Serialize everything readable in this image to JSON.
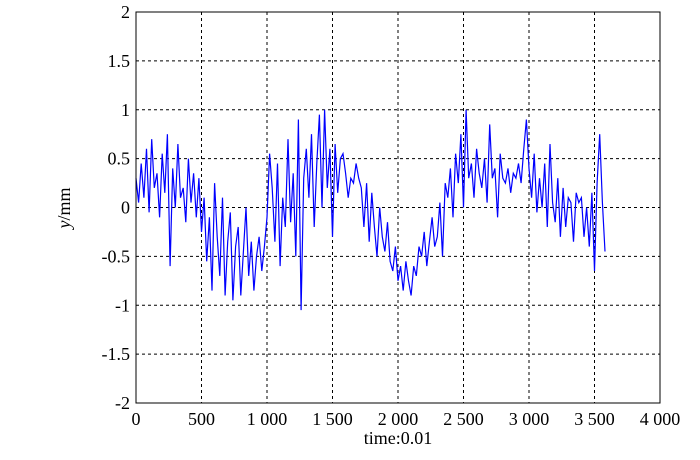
{
  "chart_data": {
    "type": "line",
    "title": "",
    "xlabel": "time:0.01",
    "ylabel_italic": "y",
    "ylabel_unit": "/mm",
    "xlim": [
      0,
      4000
    ],
    "ylim": [
      -2,
      2
    ],
    "xticks": [
      0,
      500,
      1000,
      1500,
      2000,
      2500,
      3000,
      3500,
      4000
    ],
    "xtick_labels": [
      "0",
      "500",
      "1 000",
      "1 500",
      "2 000",
      "2 500",
      "3 000",
      "3 500",
      "4 000"
    ],
    "yticks": [
      -2,
      -1.5,
      -1,
      -0.5,
      0,
      0.5,
      1,
      1.5,
      2
    ],
    "ytick_labels": [
      "-2",
      "-1.5",
      "-1",
      "-0.5",
      "0",
      "0.5",
      "1",
      "1.5",
      "2"
    ],
    "grid": true,
    "line_color": "#0000ff",
    "x_start": 0,
    "x_step": 20,
    "values": [
      0.3,
      0.05,
      0.45,
      0.1,
      0.6,
      -0.05,
      0.7,
      0.2,
      0.35,
      -0.1,
      0.55,
      0.15,
      0.75,
      -0.6,
      0.4,
      0.0,
      0.65,
      0.1,
      0.2,
      -0.15,
      0.5,
      0.05,
      0.35,
      -0.1,
      0.3,
      -0.25,
      0.1,
      -0.55,
      -0.1,
      -0.85,
      0.25,
      -0.3,
      -0.7,
      0.1,
      -0.9,
      -0.35,
      -0.05,
      -0.95,
      -0.4,
      -0.2,
      -0.9,
      -0.45,
      0.0,
      -0.7,
      -0.35,
      -0.85,
      -0.5,
      -0.3,
      -0.65,
      -0.4,
      -0.1,
      0.55,
      0.2,
      -0.35,
      0.45,
      -0.6,
      0.1,
      -0.2,
      0.7,
      -0.15,
      0.35,
      -0.5,
      0.9,
      -1.05,
      0.3,
      0.6,
      0.1,
      0.75,
      -0.2,
      0.45,
      0.95,
      0.0,
      1.0,
      0.2,
      0.6,
      -0.3,
      0.65,
      0.15,
      0.5,
      0.55,
      0.35,
      0.1,
      0.3,
      0.25,
      0.45,
      0.3,
      0.2,
      -0.2,
      0.25,
      -0.35,
      0.15,
      -0.2,
      -0.5,
      0.0,
      -0.3,
      -0.45,
      -0.15,
      -0.55,
      -0.65,
      -0.4,
      -0.75,
      -0.6,
      -0.85,
      -0.55,
      -0.75,
      -0.9,
      -0.6,
      -0.7,
      -0.4,
      -0.5,
      -0.25,
      -0.6,
      -0.35,
      -0.1,
      -0.4,
      -0.3,
      0.05,
      -0.5,
      0.25,
      0.1,
      0.4,
      -0.1,
      0.55,
      0.25,
      0.75,
      0.0,
      1.0,
      0.3,
      0.45,
      0.1,
      0.6,
      0.35,
      0.2,
      0.5,
      0.05,
      0.85,
      0.3,
      0.4,
      -0.1,
      0.55,
      0.3,
      0.25,
      0.4,
      0.15,
      0.35,
      0.3,
      0.45,
      0.25,
      0.6,
      0.9,
      0.4,
      0.1,
      0.55,
      -0.05,
      0.3,
      0.0,
      0.45,
      -0.2,
      0.65,
      0.05,
      -0.15,
      0.3,
      -0.3,
      0.2,
      -0.2,
      0.1,
      0.05,
      -0.35,
      0.15,
      0.05,
      0.1,
      -0.3,
      0.0,
      -0.4,
      0.15,
      -0.65,
      0.25,
      0.75,
      0.05,
      -0.45
    ]
  }
}
